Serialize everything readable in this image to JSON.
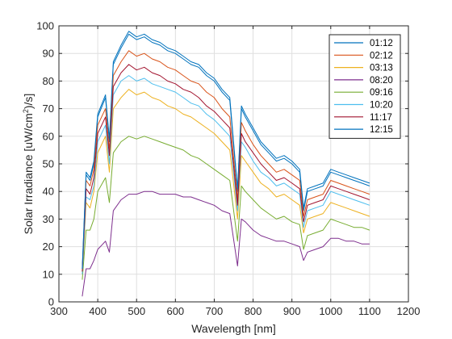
{
  "chart_data": {
    "type": "line",
    "xlabel": "Wavelength [nm]",
    "ylabel_parts": [
      "Solar Irradiance [uW/cm",
      "2",
      ")/s]"
    ],
    "xlim": [
      300,
      1200
    ],
    "ylim": [
      0,
      100
    ],
    "xticks": [
      300,
      400,
      500,
      600,
      700,
      800,
      900,
      1000,
      1100,
      1200
    ],
    "yticks": [
      0,
      10,
      20,
      30,
      40,
      50,
      60,
      70,
      80,
      90,
      100
    ],
    "grid": true,
    "legend_position": "top-right",
    "x": [
      360,
      370,
      380,
      390,
      400,
      420,
      430,
      440,
      460,
      480,
      500,
      520,
      540,
      560,
      580,
      600,
      620,
      640,
      660,
      680,
      700,
      720,
      740,
      760,
      770,
      780,
      800,
      820,
      840,
      860,
      880,
      900,
      920,
      930,
      940,
      960,
      980,
      1000,
      1020,
      1040,
      1060,
      1080,
      1100
    ],
    "series": [
      {
        "name": "01:12",
        "color": "#0072BD",
        "values": [
          12,
          46,
          44,
          50,
          67,
          74,
          58,
          86,
          92,
          97,
          95,
          96,
          94,
          93,
          91,
          90,
          88,
          86,
          85,
          82,
          80,
          76,
          73,
          40,
          70,
          67,
          62,
          57,
          54,
          51,
          52,
          50,
          47,
          33,
          40,
          41,
          42,
          47,
          46,
          45,
          44,
          43,
          42
        ]
      },
      {
        "name": "02:12",
        "color": "#D95319",
        "values": [
          11,
          44,
          42,
          48,
          64,
          70,
          55,
          82,
          87,
          91,
          89,
          90,
          88,
          87,
          85,
          84,
          82,
          80,
          79,
          76,
          74,
          70,
          67,
          37,
          65,
          62,
          57,
          53,
          50,
          47,
          48,
          46,
          44,
          31,
          37,
          38,
          39,
          44,
          43,
          42,
          41,
          40,
          39
        ]
      },
      {
        "name": "03:13",
        "color": "#EDB120",
        "values": [
          10,
          36,
          34,
          40,
          54,
          60,
          47,
          70,
          74,
          77,
          75,
          76,
          74,
          73,
          71,
          70,
          68,
          67,
          65,
          63,
          61,
          58,
          55,
          30,
          53,
          51,
          47,
          43,
          41,
          38,
          39,
          37,
          35,
          25,
          30,
          31,
          32,
          36,
          35,
          34,
          33,
          32,
          31
        ]
      },
      {
        "name": "08:20",
        "color": "#7E2F8E",
        "values": [
          2,
          12,
          12,
          15,
          19,
          22,
          18,
          33,
          37,
          39,
          39,
          40,
          40,
          39,
          39,
          39,
          38,
          38,
          37,
          36,
          35,
          33,
          32,
          13,
          30,
          29,
          26,
          24,
          23,
          22,
          22,
          21,
          20,
          15,
          18,
          19,
          20,
          23,
          23,
          22,
          22,
          21,
          21
        ]
      },
      {
        "name": "09:16",
        "color": "#77AC30",
        "values": [
          8,
          26,
          26,
          30,
          40,
          45,
          36,
          54,
          58,
          60,
          59,
          60,
          59,
          58,
          57,
          56,
          55,
          53,
          52,
          50,
          48,
          46,
          44,
          22,
          42,
          40,
          37,
          34,
          32,
          30,
          31,
          29,
          28,
          19,
          24,
          25,
          26,
          30,
          29,
          28,
          27,
          27,
          26
        ]
      },
      {
        "name": "10:20",
        "color": "#4DBEEE",
        "values": [
          10,
          38,
          37,
          42,
          58,
          64,
          50,
          75,
          80,
          82,
          80,
          81,
          79,
          78,
          77,
          76,
          74,
          72,
          71,
          68,
          66,
          63,
          60,
          33,
          58,
          56,
          51,
          47,
          45,
          42,
          43,
          41,
          39,
          27,
          33,
          34,
          35,
          40,
          39,
          38,
          37,
          36,
          35
        ]
      },
      {
        "name": "11:17",
        "color": "#A2142F",
        "values": [
          11,
          41,
          39,
          45,
          61,
          67,
          53,
          78,
          83,
          86,
          84,
          85,
          83,
          82,
          80,
          79,
          77,
          76,
          74,
          71,
          69,
          66,
          63,
          35,
          61,
          58,
          54,
          50,
          47,
          44,
          45,
          43,
          41,
          29,
          35,
          36,
          37,
          42,
          41,
          40,
          39,
          38,
          37
        ]
      },
      {
        "name": "12:15",
        "color": "#0072BD",
        "values": [
          12,
          47,
          45,
          51,
          68,
          75,
          59,
          87,
          93,
          98,
          96,
          97,
          95,
          94,
          92,
          91,
          89,
          87,
          86,
          83,
          81,
          77,
          74,
          41,
          71,
          68,
          63,
          58,
          55,
          52,
          53,
          51,
          48,
          34,
          41,
          42,
          43,
          48,
          47,
          46,
          45,
          44,
          43
        ]
      }
    ]
  }
}
